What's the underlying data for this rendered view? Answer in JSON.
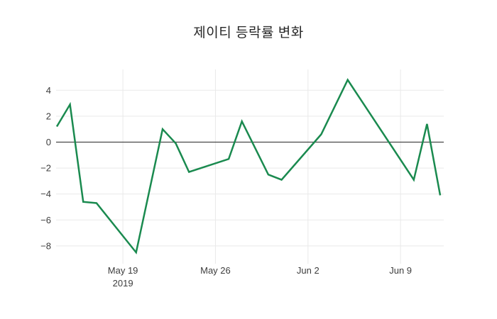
{
  "chart": {
    "title": "제이티 등락률 변화",
    "colors": {
      "line": "#1a8a4f",
      "grid": "#e9e9e9",
      "zero_line": "#474747",
      "tick_text": "#3d3d3d",
      "title_text": "#262626",
      "background": "#ffffff"
    },
    "y_ticks": [
      {
        "label": "4",
        "value": 4
      },
      {
        "label": "2",
        "value": 2
      },
      {
        "label": "0",
        "value": 0
      },
      {
        "label": "−2",
        "value": -2
      },
      {
        "label": "−4",
        "value": -4
      },
      {
        "label": "−6",
        "value": -6
      },
      {
        "label": "−8",
        "value": -8
      }
    ],
    "x_ticks": [
      {
        "label": "May 19",
        "sublabel": "2019",
        "date": "2019-05-19"
      },
      {
        "label": "May 26",
        "sublabel": "",
        "date": "2019-05-26"
      },
      {
        "label": "Jun 2",
        "sublabel": "",
        "date": "2019-06-02"
      },
      {
        "label": "Jun 9",
        "sublabel": "",
        "date": "2019-06-09"
      }
    ]
  },
  "chart_data": {
    "type": "line",
    "title": "제이티 등락률 변화",
    "xlabel": "",
    "ylabel": "",
    "grid": true,
    "legend": false,
    "ylim": [
      -9.2,
      5.5
    ],
    "x": [
      "2019-05-14",
      "2019-05-15",
      "2019-05-16",
      "2019-05-17",
      "2019-05-20",
      "2019-05-22",
      "2019-05-23",
      "2019-05-24",
      "2019-05-27",
      "2019-05-28",
      "2019-05-30",
      "2019-05-31",
      "2019-06-03",
      "2019-06-05",
      "2019-06-10",
      "2019-06-11",
      "2019-06-12"
    ],
    "y": [
      1.2,
      2.9,
      -4.6,
      -4.7,
      -8.5,
      1.0,
      -0.1,
      -2.3,
      -1.3,
      1.6,
      -2.5,
      -2.9,
      0.6,
      4.8,
      -2.9,
      1.4,
      -4.1
    ]
  }
}
